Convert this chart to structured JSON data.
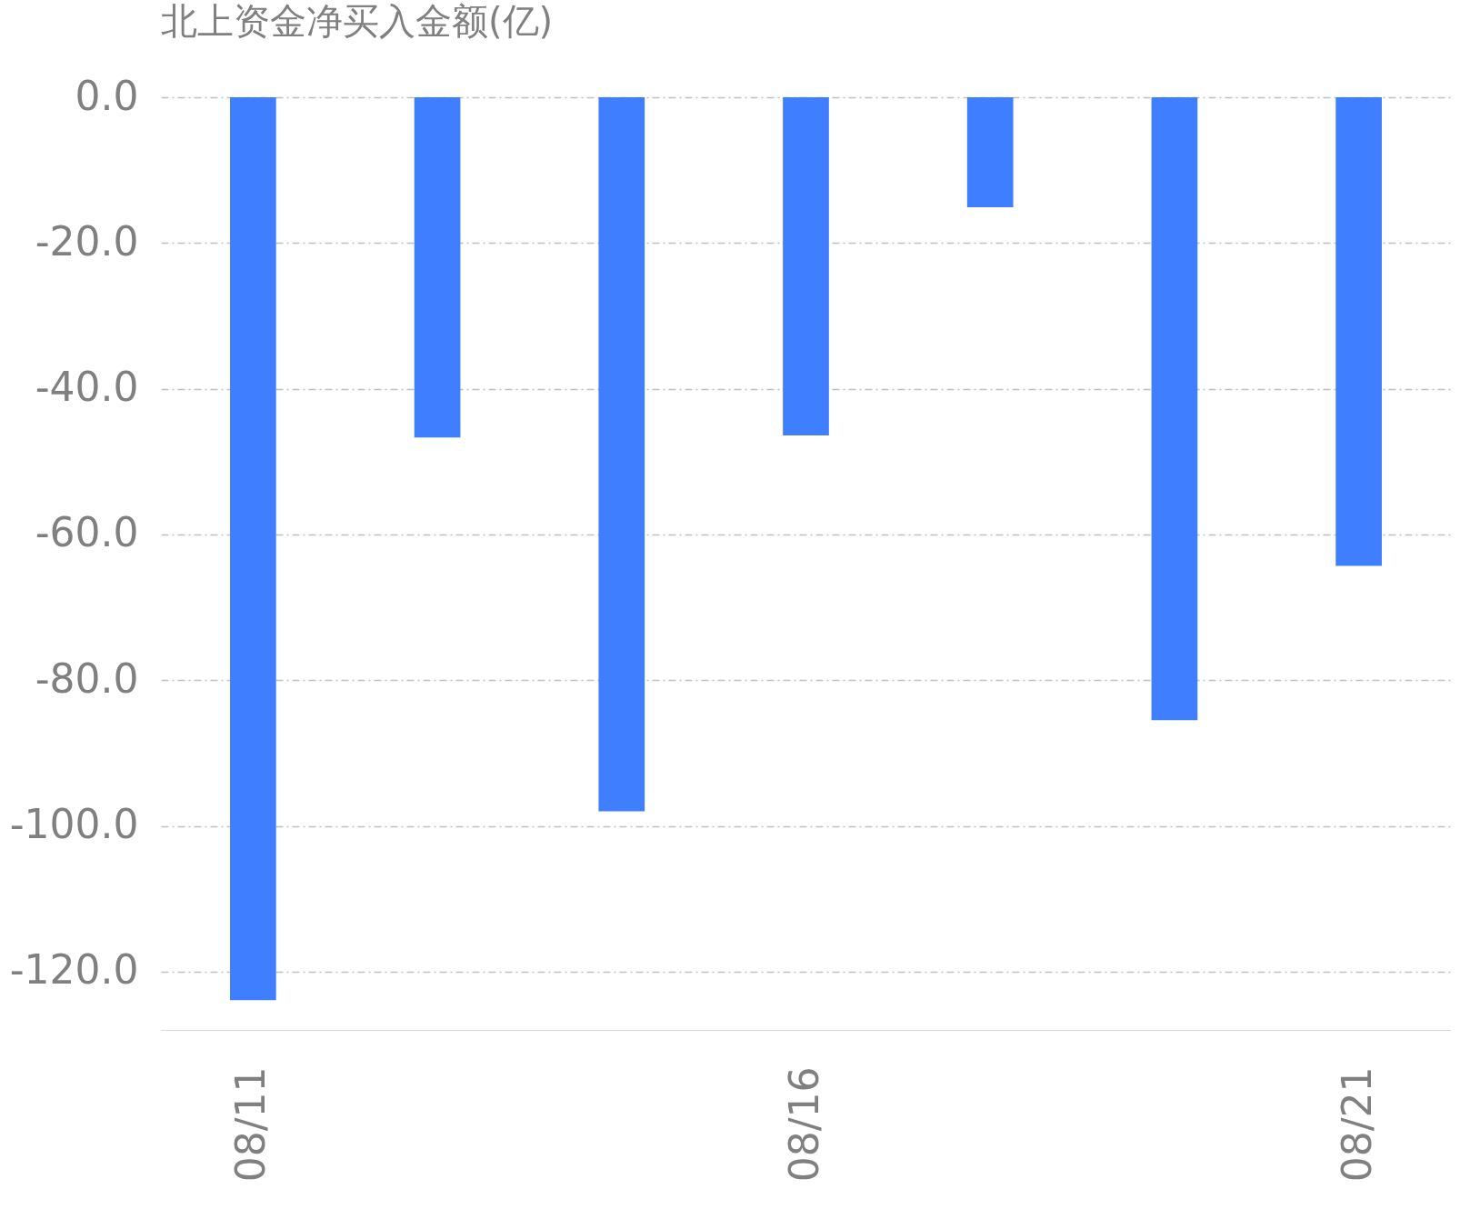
{
  "chart_data": {
    "type": "bar",
    "title": "北上资金净买入金额(亿)",
    "categories": [
      "08/11",
      null,
      null,
      "08/16",
      null,
      null,
      "08/21"
    ],
    "values": [
      -123.9,
      -46.7,
      -98.0,
      -46.4,
      -15.1,
      -85.5,
      -64.3
    ],
    "color": "#3f7fff",
    "ylim": [
      -128,
      0
    ],
    "yticks": [
      {
        "value": 0,
        "label": "0.0"
      },
      {
        "value": -20,
        "label": "-20.0"
      },
      {
        "value": -40,
        "label": "-40.0"
      },
      {
        "value": -60,
        "label": "-60.0"
      },
      {
        "value": -80,
        "label": "-80.0"
      },
      {
        "value": -100,
        "label": "-100.0"
      },
      {
        "value": -120,
        "label": "-120.0"
      }
    ],
    "grid": "y"
  }
}
